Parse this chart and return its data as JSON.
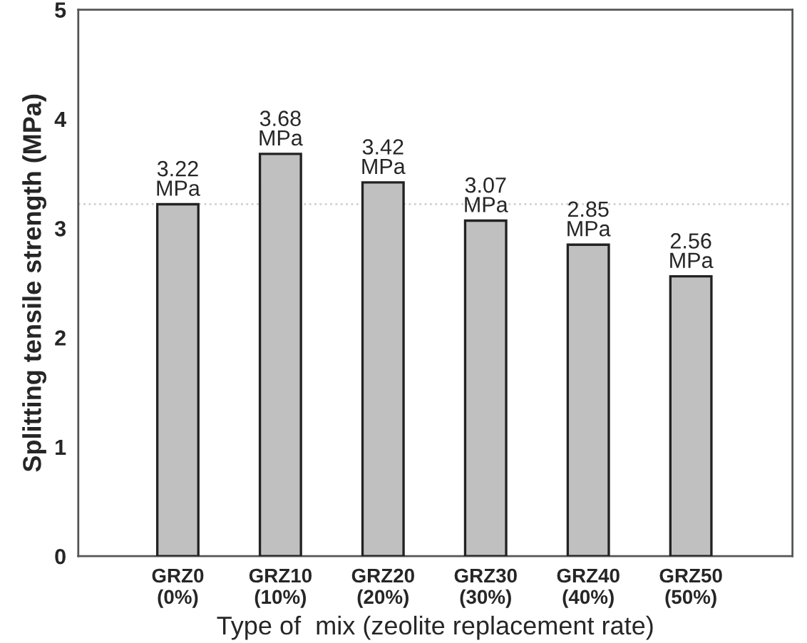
{
  "chart_data": {
    "type": "bar",
    "xlabel": "Type of  mix (zeolite replacement rate)",
    "ylabel": "Splitting tensile strength (MPa)",
    "categories": [
      "GRZ0\n(0%)",
      "GRZ10\n(10%)",
      "GRZ20\n(20%)",
      "GRZ30\n(30%)",
      "GRZ40\n(40%)",
      "GRZ50\n(50%)"
    ],
    "values": [
      3.22,
      3.68,
      3.42,
      3.07,
      2.85,
      2.56
    ],
    "value_labels": [
      "3.22\nMPa",
      "3.68\nMPa",
      "3.42\nMPa",
      "3.07\nMPa",
      "2.85\nMPa",
      "2.56\nMPa"
    ],
    "color": "#c0c0c0",
    "ylim": [
      0,
      5
    ],
    "yticks": [
      0,
      1,
      2,
      3,
      4,
      5
    ],
    "ref_lines": [
      {
        "axis": "y",
        "value": 3.22,
        "label": null,
        "color": "#d0d0d0",
        "line_style": "dotted"
      }
    ],
    "grid": false
  }
}
